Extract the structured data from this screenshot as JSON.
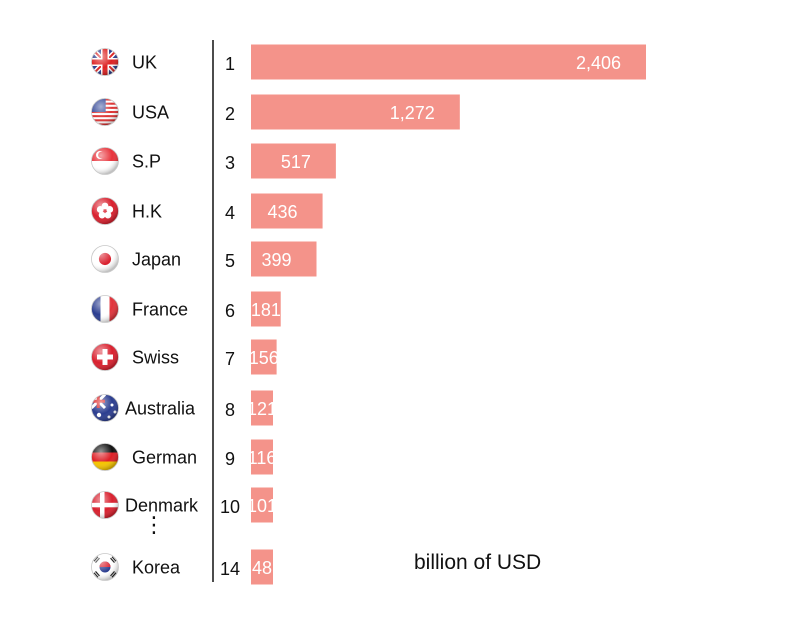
{
  "chart_data": {
    "type": "bar",
    "orientation": "horizontal",
    "categories": [
      "UK",
      "USA",
      "S.P",
      "H.K",
      "Japan",
      "France",
      "Swiss",
      "Australia",
      "German",
      "Denmark",
      "Korea"
    ],
    "ranks": [
      "1",
      "2",
      "3",
      "4",
      "5",
      "6",
      "7",
      "8",
      "9",
      "10",
      "14"
    ],
    "values": [
      2406,
      1272,
      517,
      436,
      399,
      181,
      156,
      121,
      116,
      101,
      48
    ],
    "value_labels": [
      "2,406",
      "1,272",
      "517",
      "436",
      "399",
      "181",
      "156",
      "121",
      "116",
      "101",
      "48"
    ],
    "flag_icons": [
      "uk-flag-icon",
      "usa-flag-icon",
      "singapore-flag-icon",
      "hong-kong-flag-icon",
      "japan-flag-icon",
      "france-flag-icon",
      "swiss-flag-icon",
      "australia-flag-icon",
      "germany-flag-icon",
      "denmark-flag-icon",
      "korea-flag-icon"
    ],
    "gap_marker": "⋮",
    "unit_label": "billion of USD",
    "xlim": [
      0,
      2406
    ],
    "grid": false,
    "legend": "none",
    "colors": {
      "bar": "#f4938a",
      "bar_text": "#ffffff",
      "axis": "#111111"
    }
  }
}
